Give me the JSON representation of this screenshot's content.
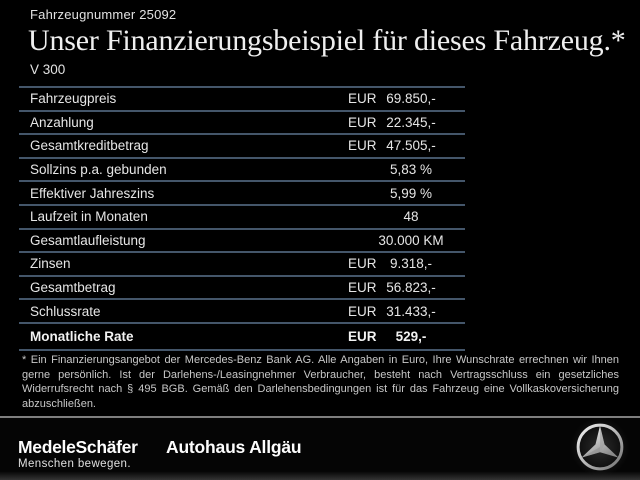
{
  "colors": {
    "background": "#000000",
    "table_line": "#44566a",
    "footer_separator": "#7e7e7e",
    "text": "#e8e8e8",
    "footnote_text": "#c8c8c8"
  },
  "header": {
    "vehicle_number": "Fahrzeugnummer 25092",
    "title": "Unser Finanzierungsbeispiel für dieses Fahrzeug.*",
    "model": "V 300"
  },
  "table": {
    "rows": [
      {
        "label": "Fahrzeugpreis",
        "currency": "EUR",
        "value": "69.850,-",
        "bold": false
      },
      {
        "label": "Anzahlung",
        "currency": "EUR",
        "value": "22.345,-",
        "bold": false
      },
      {
        "label": "Gesamtkreditbetrag",
        "currency": "EUR",
        "value": "47.505,-",
        "bold": false
      },
      {
        "label": "Sollzins p.a. gebunden",
        "currency": "",
        "value": "5,83 %",
        "bold": false
      },
      {
        "label": "Effektiver Jahreszins",
        "currency": "",
        "value": "5,99 %",
        "bold": false
      },
      {
        "label": "Laufzeit in Monaten",
        "currency": "",
        "value": "48",
        "bold": false
      },
      {
        "label": "Gesamtlaufleistung",
        "currency": "",
        "value": "30.000 KM",
        "bold": false
      },
      {
        "label": "Zinsen",
        "currency": "EUR",
        "value": "9.318,-",
        "bold": false
      },
      {
        "label": "Gesamtbetrag",
        "currency": "EUR",
        "value": "56.823,-",
        "bold": false
      },
      {
        "label": "Schlussrate",
        "currency": "EUR",
        "value": "31.433,-",
        "bold": false
      },
      {
        "label": "Monatliche Rate",
        "currency": "EUR",
        "value": "529,-",
        "bold": true
      }
    ]
  },
  "footnote": {
    "text": "* Ein Finanzierungsangebot der Mercedes-Benz Bank AG. Alle Angaben in Euro, Ihre Wunschrate errechnen wir Ihnen gerne persönlich. Ist der Darlehens-/Leasingnehmer Verbraucher, besteht nach Vertragsschluss ein gesetzliches Widerrufsrecht nach § 495 BGB. Gemäß den Darlehensbedingungen ist für das Fahrzeug eine Vollkaskoversicherung abzuschließen."
  },
  "footer": {
    "dealer_logo_primary": "MedeleSchäfer",
    "dealer_tagline": "Menschen bewegen.",
    "dealer_logo_secondary": "Autohaus Allgäu",
    "brand_icon": "mercedes-star-icon"
  }
}
